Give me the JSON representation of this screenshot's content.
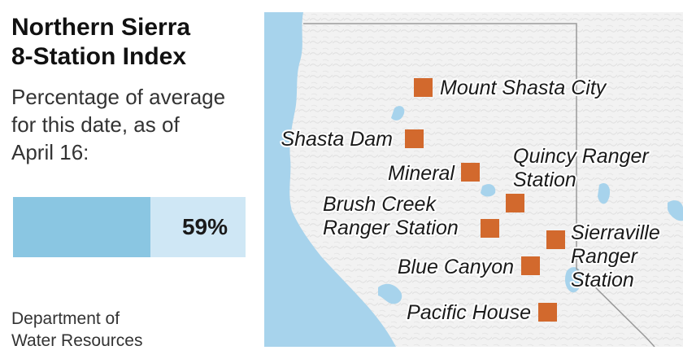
{
  "title_line1": "Northern Sierra",
  "title_line2": "8-Station Index",
  "subtitle_line1": "Percentage of average",
  "subtitle_line2": "for this date, as of",
  "subtitle_line3": "April 16:",
  "percent": {
    "value": 59,
    "label": "59%"
  },
  "source_line1": "Department of",
  "source_line2": "Water Resources",
  "colors": {
    "bar_fill": "#8ac6e2",
    "bar_track": "#cfe7f5",
    "marker": "#d2692d",
    "water": "#a7d3ec"
  },
  "stations": [
    {
      "id": "mount-shasta-city",
      "lines": [
        "Mount Shasta City"
      ]
    },
    {
      "id": "shasta-dam",
      "lines": [
        "Shasta Dam"
      ]
    },
    {
      "id": "mineral",
      "lines": [
        "Mineral"
      ]
    },
    {
      "id": "quincy",
      "lines": [
        "Quincy Ranger",
        "Station"
      ]
    },
    {
      "id": "brush-creek",
      "lines": [
        "Brush Creek",
        "Ranger Station"
      ]
    },
    {
      "id": "sierraville",
      "lines": [
        "Sierraville",
        "Ranger",
        "Station"
      ]
    },
    {
      "id": "blue-canyon",
      "lines": [
        "Blue Canyon"
      ]
    },
    {
      "id": "pacific-house",
      "lines": [
        "Pacific House"
      ]
    }
  ]
}
